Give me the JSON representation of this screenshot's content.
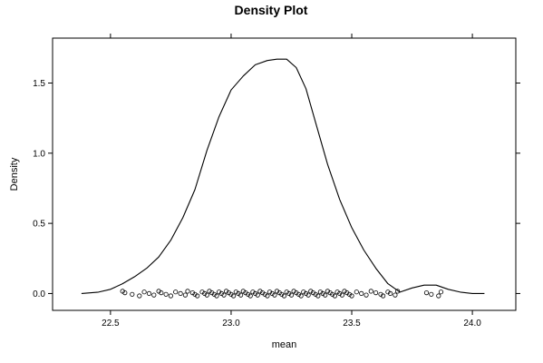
{
  "chart_data": {
    "type": "line",
    "title": "Density Plot",
    "xlabel": "mean",
    "ylabel": "Density",
    "xlim": [
      22.26,
      24.18
    ],
    "ylim": [
      -0.12,
      1.82
    ],
    "x_ticks": [
      22.5,
      23.0,
      23.5,
      24.0
    ],
    "x_tick_labels": [
      "22.5",
      "23.0",
      "23.5",
      "24.0"
    ],
    "y_ticks": [
      0.0,
      0.5,
      1.0,
      1.5
    ],
    "y_tick_labels": [
      "0.0",
      "0.5",
      "1.0",
      "1.5"
    ],
    "grid": false,
    "legend": "none",
    "series": [
      {
        "kind": "density",
        "x": [
          22.38,
          22.45,
          22.5,
          22.55,
          22.6,
          22.65,
          22.7,
          22.75,
          22.8,
          22.85,
          22.9,
          22.95,
          23.0,
          23.05,
          23.1,
          23.15,
          23.19,
          23.23,
          23.27,
          23.31,
          23.35,
          23.4,
          23.45,
          23.5,
          23.55,
          23.6,
          23.65,
          23.7,
          23.75,
          23.8,
          23.85,
          23.9,
          23.95,
          24.0,
          24.05
        ],
        "y": [
          0.0,
          0.01,
          0.03,
          0.07,
          0.12,
          0.18,
          0.26,
          0.38,
          0.54,
          0.74,
          1.02,
          1.26,
          1.45,
          1.55,
          1.63,
          1.66,
          1.67,
          1.67,
          1.61,
          1.46,
          1.22,
          0.92,
          0.67,
          0.47,
          0.31,
          0.18,
          0.07,
          0.01,
          0.04,
          0.06,
          0.06,
          0.03,
          0.01,
          0.0,
          0.0
        ]
      },
      {
        "kind": "rug",
        "x": [
          22.55,
          22.56,
          22.59,
          22.62,
          22.64,
          22.66,
          22.68,
          22.7,
          22.71,
          22.73,
          22.75,
          22.77,
          22.79,
          22.81,
          22.82,
          22.84,
          22.85,
          22.86,
          22.88,
          22.89,
          22.9,
          22.91,
          22.92,
          22.93,
          22.94,
          22.95,
          22.96,
          22.97,
          22.98,
          22.99,
          23.0,
          23.01,
          23.02,
          23.03,
          23.04,
          23.05,
          23.06,
          23.07,
          23.08,
          23.09,
          23.1,
          23.11,
          23.12,
          23.13,
          23.14,
          23.15,
          23.16,
          23.17,
          23.18,
          23.19,
          23.2,
          23.21,
          23.22,
          23.23,
          23.24,
          23.25,
          23.26,
          23.27,
          23.28,
          23.29,
          23.3,
          23.31,
          23.32,
          23.33,
          23.34,
          23.35,
          23.36,
          23.37,
          23.38,
          23.39,
          23.4,
          23.41,
          23.42,
          23.43,
          23.44,
          23.45,
          23.46,
          23.47,
          23.48,
          23.49,
          23.5,
          23.52,
          23.54,
          23.56,
          23.58,
          23.6,
          23.62,
          23.63,
          23.65,
          23.66,
          23.68,
          23.69,
          23.81,
          23.83,
          23.86,
          23.87
        ]
      }
    ]
  }
}
